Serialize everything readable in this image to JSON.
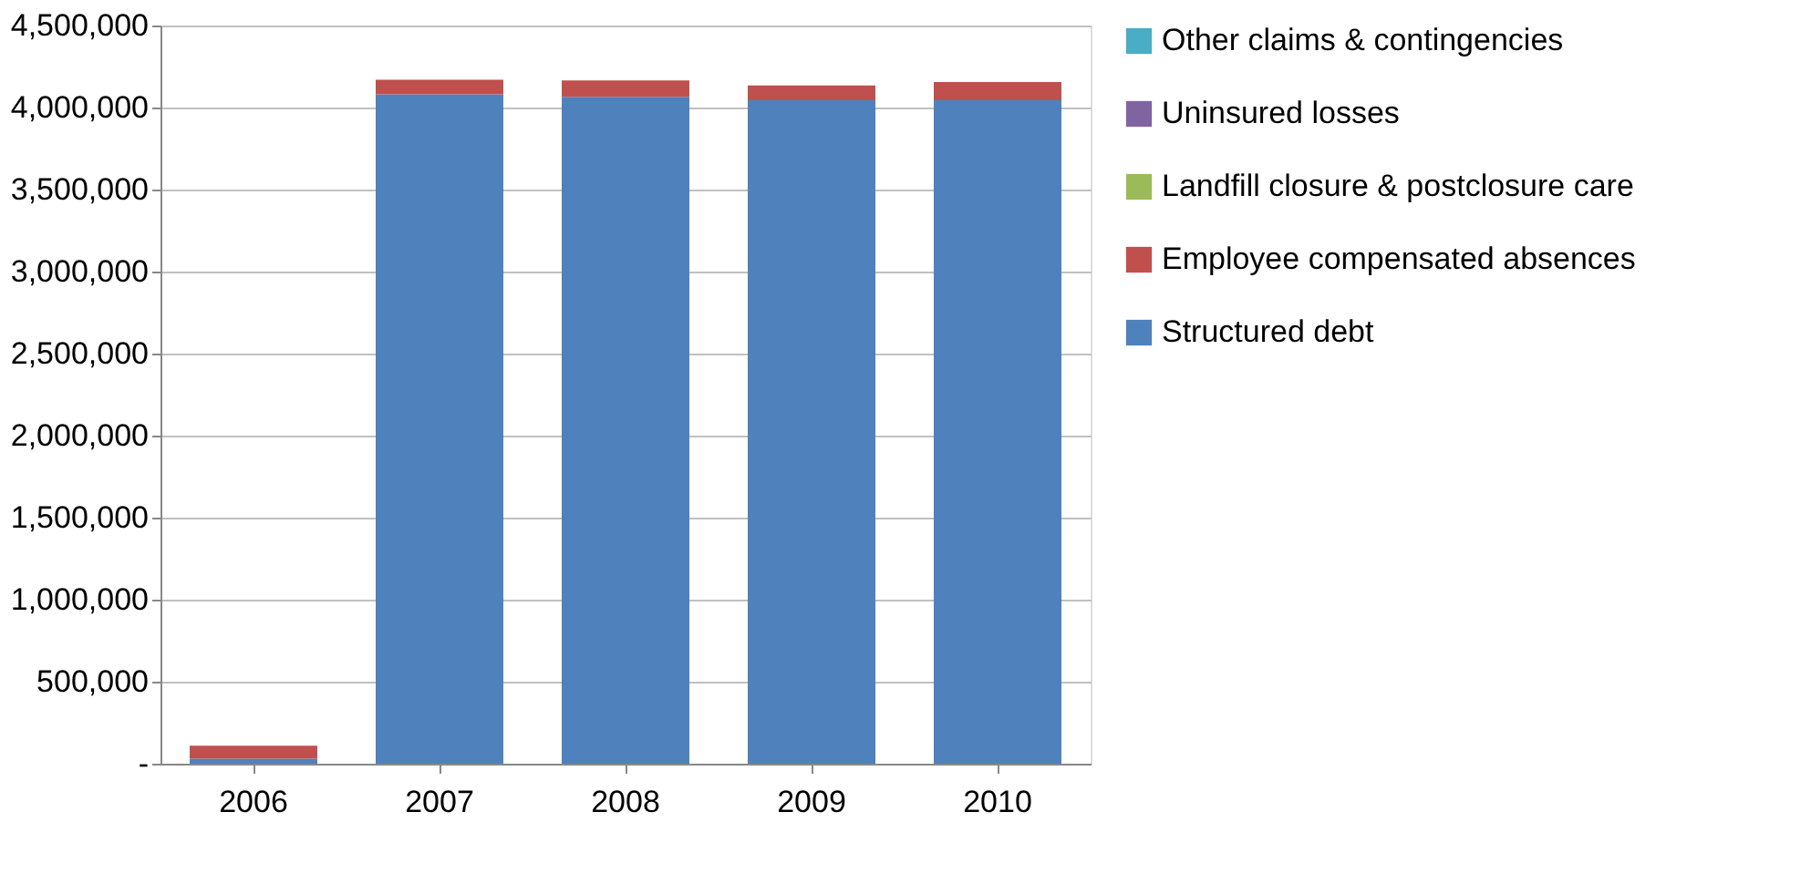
{
  "chart_data": {
    "type": "bar",
    "stacked": true,
    "categories": [
      "2006",
      "2007",
      "2008",
      "2009",
      "2010"
    ],
    "series": [
      {
        "name": "Structured debt",
        "color": "#4f81bd",
        "values": [
          30000,
          4080000,
          4065000,
          4045000,
          4045000
        ]
      },
      {
        "name": "Employee compensated absences",
        "color": "#c0504d",
        "values": [
          80000,
          90000,
          100000,
          90000,
          110000
        ]
      },
      {
        "name": "Landfill closure & postclosure care",
        "color": "#9bbb59",
        "values": [
          0,
          0,
          0,
          0,
          0
        ]
      },
      {
        "name": "Uninsured losses",
        "color": "#8064a2",
        "values": [
          0,
          0,
          0,
          0,
          0
        ]
      },
      {
        "name": "Other claims & contingencies",
        "color": "#4bacc6",
        "values": [
          0,
          0,
          0,
          0,
          0
        ]
      }
    ],
    "ylim": [
      0,
      4500000
    ],
    "yticks": [
      {
        "value": 0,
        "label": "-"
      },
      {
        "value": 500000,
        "label": "500,000"
      },
      {
        "value": 1000000,
        "label": "1,000,000"
      },
      {
        "value": 1500000,
        "label": "1,500,000"
      },
      {
        "value": 2000000,
        "label": "2,000,000"
      },
      {
        "value": 2500000,
        "label": "2,500,000"
      },
      {
        "value": 3000000,
        "label": "3,000,000"
      },
      {
        "value": 3500000,
        "label": "3,500,000"
      },
      {
        "value": 4000000,
        "label": "4,000,000"
      },
      {
        "value": 4500000,
        "label": "4,500,000"
      }
    ],
    "grid": "y",
    "legend": "right"
  }
}
